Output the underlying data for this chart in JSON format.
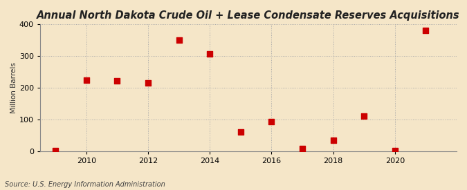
{
  "title": "Annual North Dakota Crude Oil + Lease Condensate Reserves Acquisitions",
  "ylabel": "Million Barrels",
  "source": "Source: U.S. Energy Information Administration",
  "background_color": "#f5e6c8",
  "plot_background_color": "#f5e6c8",
  "marker_color": "#cc0000",
  "marker_size": 28,
  "years": [
    2009,
    2010,
    2011,
    2012,
    2013,
    2014,
    2015,
    2016,
    2017,
    2018,
    2019,
    2020,
    2021
  ],
  "values": [
    2,
    225,
    222,
    215,
    350,
    308,
    62,
    93,
    8,
    35,
    112,
    2,
    381
  ],
  "xlim": [
    2008.5,
    2022.0
  ],
  "ylim": [
    0,
    400
  ],
  "yticks": [
    0,
    100,
    200,
    300,
    400
  ],
  "xticks": [
    2010,
    2012,
    2014,
    2016,
    2018,
    2020
  ],
  "grid_color": "#aaaaaa",
  "grid_linestyle": ":",
  "grid_linewidth": 0.7,
  "title_fontsize": 10.5,
  "label_fontsize": 7.5,
  "tick_fontsize": 8,
  "source_fontsize": 7
}
